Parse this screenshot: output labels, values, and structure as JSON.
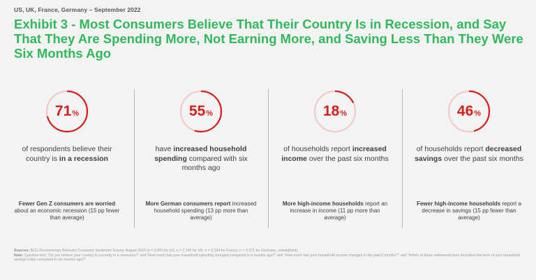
{
  "header": {
    "eyebrow": "US, UK, France, Germany – September 2022",
    "title": "Exhibit 3 - Most Consumers Believe That Their Country Is in Recession, and Say That They Are Spending More, Not Earning More, and Saving Less Than They Were Six Months Ago"
  },
  "colors": {
    "accent": "#d4201a",
    "title": "#31b85c",
    "ring_muted": "#f3c9c5"
  },
  "chart_data": {
    "type": "donut-stat",
    "unit": "%",
    "panels": [
      {
        "value": 71,
        "desc": [
          {
            "t": "of respondents",
            "b": false
          },
          {
            "t": " believe their country ",
            "b": false
          },
          {
            "t": "is ",
            "b": false
          },
          {
            "t": "in a recession",
            "b": true
          }
        ],
        "note": [
          {
            "t": "Fewer Gen Z consumers are ",
            "b": true
          },
          {
            "t": "worried",
            "b": true
          },
          {
            "t": " about an economic recession (15 pp fewer than average)",
            "b": false
          }
        ]
      },
      {
        "value": 55,
        "desc": [
          {
            "t": "have ",
            "b": false
          },
          {
            "t": "increased household spending",
            "b": true
          },
          {
            "t": " compared with six months ago",
            "b": false
          }
        ],
        "note": [
          {
            "t": "More German consumers report",
            "b": true
          },
          {
            "t": " increased household spending (13 pp more than average)",
            "b": false
          }
        ]
      },
      {
        "value": 18,
        "desc": [
          {
            "t": "of households report ",
            "b": false
          },
          {
            "t": "increased income",
            "b": true
          },
          {
            "t": " over the past six months",
            "b": false
          }
        ],
        "note": [
          {
            "t": "More high-income households",
            "b": true
          },
          {
            "t": " report an increase in income (11 pp more than average)",
            "b": false
          }
        ]
      },
      {
        "value": 46,
        "desc": [
          {
            "t": "of households report ",
            "b": false
          },
          {
            "t": "decreased savings",
            "b": true
          },
          {
            "t": " over the past six months",
            "b": false
          }
        ],
        "note": [
          {
            "t": "Fewer high-income households",
            "b": true
          },
          {
            "t": " report a decrease in savings (15 pp fewer than average)",
            "b": false
          }
        ]
      }
    ]
  },
  "footer": {
    "sources_label": "Sources:",
    "sources": "BCG Recessionary Behavior Consumer Sentiment Survey, August 2022 (n = 2,041 for US, n = 2,146 for UK, n = 2,104 for France, n = 2,571 for Germany, unweighted).",
    "note_label": "Note:",
    "note": "Question text: \"Do you believe your country is currently in a recession?\" and \"How much has your household spending changed compared to 6 months ago?\" and \"How much has your household income changed in the past 6 months?\" and \"Which of these statements best describes the level of your household savings today compared to six months ago?\""
  }
}
